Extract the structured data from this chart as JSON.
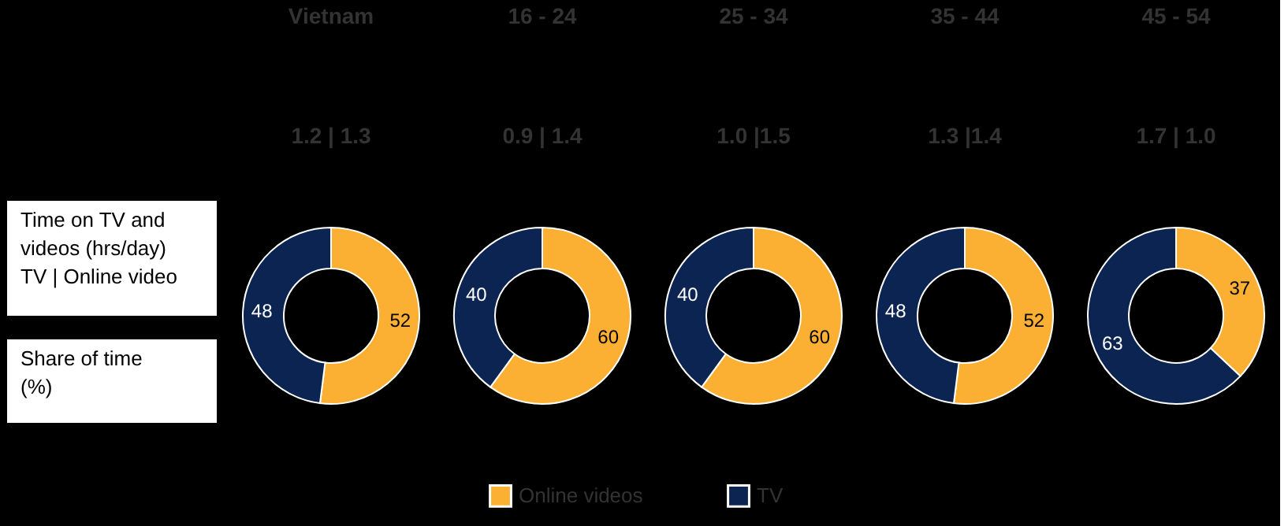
{
  "chart_data": [
    {
      "type": "other",
      "annotations": [
        "Time on TV and\nvideos (hrs/day)\nTV | Online video",
        "Share of time\n(%)"
      ]
    },
    {
      "type": "donut",
      "title": "Vietnam",
      "subtitle": "1.2 | 1.3",
      "categories": [
        "Online videos",
        "TV"
      ],
      "values": [
        52,
        48
      ],
      "colors": [
        "#fbb034",
        "#0c2452"
      ],
      "data_labels": true,
      "legend": "bottom"
    },
    {
      "type": "donut",
      "title": "16 - 24",
      "subtitle": "0.9 | 1.4",
      "categories": [
        null,
        null
      ],
      "values": [
        60,
        40
      ],
      "colors": [
        "#fbb034",
        "#0c2452"
      ],
      "data_labels": true
    },
    {
      "type": "donut",
      "title": "25 - 34",
      "subtitle": "1.0 |1.5",
      "categories": [
        null,
        null
      ],
      "values": [
        60,
        40
      ],
      "colors": [
        "#fbb034",
        "#0c2452"
      ],
      "data_labels": true
    },
    {
      "type": "donut",
      "title": "35 - 44",
      "subtitle": "1.3 |1.4",
      "categories": [
        null,
        null
      ],
      "values": [
        52,
        48
      ],
      "colors": [
        "#fbb034",
        "#0c2452"
      ],
      "data_labels": true
    },
    {
      "type": "donut",
      "title": "45 - 54",
      "subtitle": "1.7 | 1.0",
      "categories": [
        null,
        null
      ],
      "values": [
        37,
        63
      ],
      "colors": [
        "#fbb034",
        "#0c2452"
      ],
      "data_labels": true
    }
  ]
}
